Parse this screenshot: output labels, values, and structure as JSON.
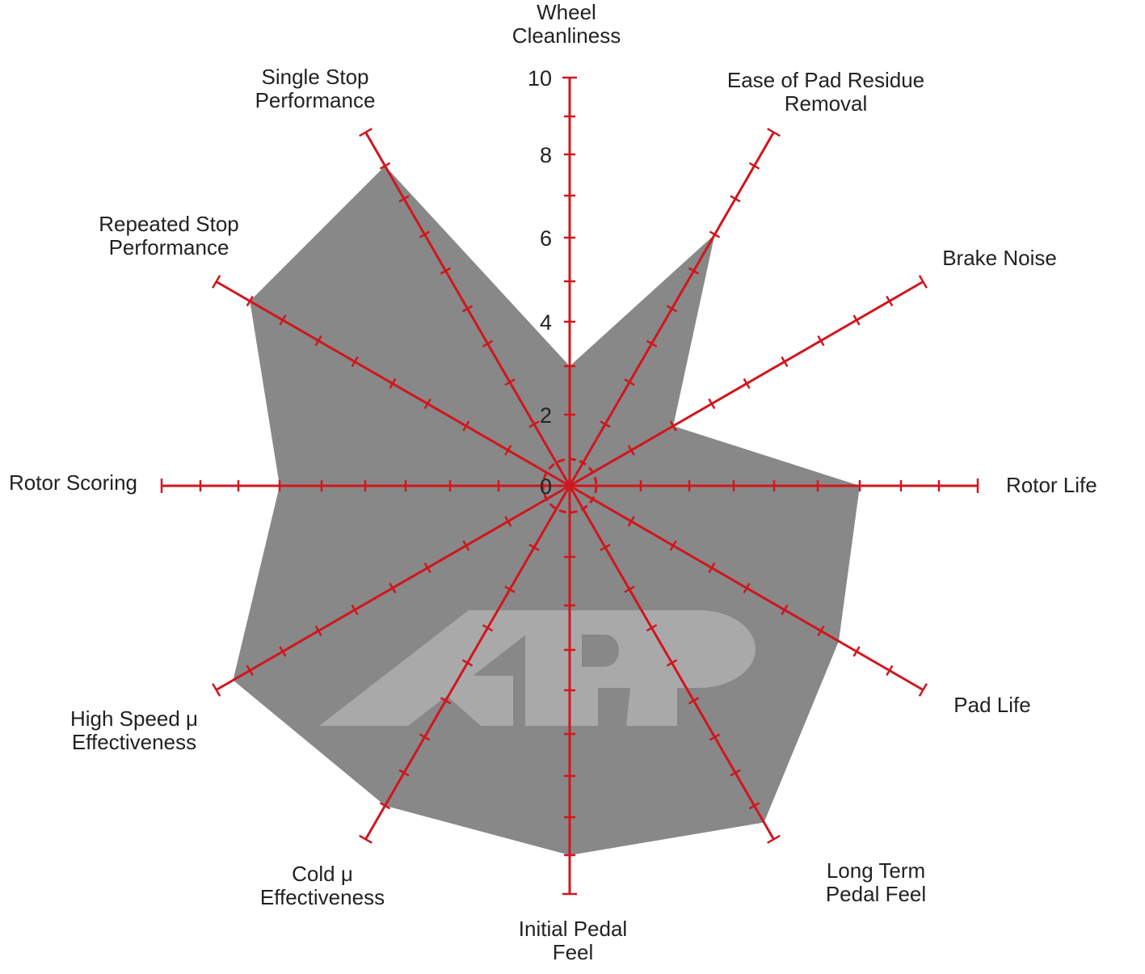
{
  "chart_data": {
    "type": "radar",
    "axes": [
      {
        "label": [
          "Wheel",
          "Cleanliness"
        ],
        "value": 3
      },
      {
        "label": [
          "Ease of Pad Residue",
          "Removal"
        ],
        "value": 7
      },
      {
        "label": [
          "Brake Noise"
        ],
        "value": 3
      },
      {
        "label": [
          "Rotor Life"
        ],
        "value": 7
      },
      {
        "label": [
          "Pad Life"
        ],
        "value": 7.5
      },
      {
        "label": [
          "Long Term",
          "Pedal Feel"
        ],
        "value": 9.5
      },
      {
        "label": [
          "Initial Pedal",
          "Feel"
        ],
        "value": 9
      },
      {
        "label": [
          "Cold μ",
          "Effectiveness"
        ],
        "value": 9
      },
      {
        "label": [
          "High Speed μ",
          "Effectiveness"
        ],
        "value": 9.5
      },
      {
        "label": [
          "Rotor Scoring"
        ],
        "value": 7
      },
      {
        "label": [
          "Repeated Stop",
          "Performance"
        ],
        "value": 9
      },
      {
        "label": [
          "Single Stop",
          "Performance"
        ],
        "value": 9
      }
    ],
    "range": [
      0,
      10
    ],
    "tick_labels": [
      "0",
      "2",
      "4",
      "6",
      "8",
      "10"
    ],
    "fill_color": "#878887",
    "axis_color": "#d0161e",
    "watermark": "KPP",
    "watermark_color": "#a9a9a9"
  }
}
